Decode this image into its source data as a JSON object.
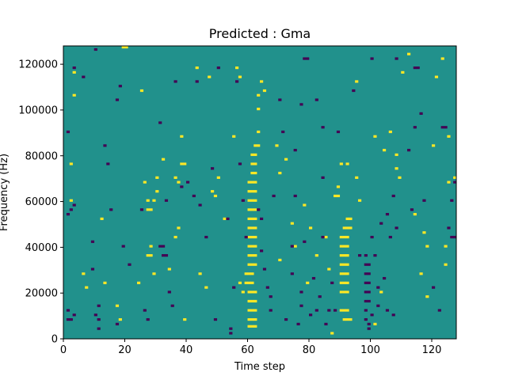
{
  "chart_data": {
    "type": "heatmap",
    "title": "Predicted : Gma",
    "xlabel": "Time step",
    "ylabel": "Frequency (Hz)",
    "xlim": [
      0,
      128
    ],
    "ylim": [
      0,
      128000
    ],
    "xticks": [
      0,
      20,
      40,
      60,
      80,
      100,
      120
    ],
    "yticks": [
      0,
      20000,
      40000,
      60000,
      80000,
      100000,
      120000
    ],
    "ytick_labels": [
      "0",
      "20000",
      "40000",
      "60000",
      "80000",
      "100000",
      "120000"
    ],
    "rows": 128,
    "cols": 128,
    "value_levels": [
      -1,
      0,
      1
    ],
    "colors": {
      "-1": "#440154",
      "0": "#21918c",
      "1": "#fde725"
    },
    "background_value": 0,
    "cells": [
      [
        60,
        5,
        1
      ],
      [
        61,
        5,
        1
      ],
      [
        62,
        5,
        1
      ],
      [
        60,
        8,
        1
      ],
      [
        61,
        8,
        1
      ],
      [
        62,
        8,
        1
      ],
      [
        60,
        12,
        1
      ],
      [
        61,
        12,
        1
      ],
      [
        62,
        12,
        1
      ],
      [
        60,
        16,
        1
      ],
      [
        61,
        16,
        1
      ],
      [
        62,
        16,
        1
      ],
      [
        60,
        20,
        1
      ],
      [
        61,
        20,
        1
      ],
      [
        62,
        20,
        1
      ],
      [
        59,
        24,
        1
      ],
      [
        60,
        24,
        1
      ],
      [
        61,
        24,
        1
      ],
      [
        59,
        28,
        1
      ],
      [
        60,
        28,
        1
      ],
      [
        61,
        28,
        1
      ],
      [
        60,
        32,
        1
      ],
      [
        61,
        32,
        1
      ],
      [
        62,
        32,
        1
      ],
      [
        60,
        36,
        1
      ],
      [
        61,
        36,
        1
      ],
      [
        62,
        36,
        1
      ],
      [
        60,
        40,
        1
      ],
      [
        61,
        40,
        1
      ],
      [
        62,
        40,
        1
      ],
      [
        60,
        44,
        1
      ],
      [
        61,
        44,
        1
      ],
      [
        62,
        44,
        1
      ],
      [
        60,
        48,
        1
      ],
      [
        61,
        48,
        1
      ],
      [
        62,
        48,
        1
      ],
      [
        60,
        52,
        1
      ],
      [
        61,
        52,
        1
      ],
      [
        62,
        52,
        1
      ],
      [
        60,
        56,
        1
      ],
      [
        61,
        56,
        1
      ],
      [
        62,
        56,
        1
      ],
      [
        60,
        60,
        1
      ],
      [
        61,
        60,
        1
      ],
      [
        62,
        60,
        1
      ],
      [
        60,
        64,
        1
      ],
      [
        61,
        64,
        1
      ],
      [
        62,
        64,
        1
      ],
      [
        60,
        68,
        1
      ],
      [
        61,
        68,
        1
      ],
      [
        62,
        68,
        1
      ],
      [
        61,
        72,
        1
      ],
      [
        62,
        72,
        1
      ],
      [
        61,
        76,
        1
      ],
      [
        62,
        76,
        1
      ],
      [
        61,
        80,
        1
      ],
      [
        62,
        80,
        1
      ],
      [
        62,
        84,
        1
      ],
      [
        63,
        84,
        1
      ],
      [
        63,
        90,
        1
      ],
      [
        63,
        100,
        1
      ],
      [
        63,
        106,
        1
      ],
      [
        91,
        8,
        1
      ],
      [
        92,
        8,
        1
      ],
      [
        93,
        8,
        1
      ],
      [
        90,
        12,
        1
      ],
      [
        91,
        12,
        1
      ],
      [
        92,
        12,
        1
      ],
      [
        90,
        20,
        1
      ],
      [
        91,
        20,
        1
      ],
      [
        92,
        20,
        1
      ],
      [
        90,
        24,
        1
      ],
      [
        91,
        24,
        1
      ],
      [
        92,
        24,
        1
      ],
      [
        90,
        28,
        1
      ],
      [
        91,
        28,
        1
      ],
      [
        92,
        28,
        1
      ],
      [
        90,
        32,
        1
      ],
      [
        91,
        32,
        1
      ],
      [
        92,
        32,
        1
      ],
      [
        90,
        36,
        1
      ],
      [
        91,
        36,
        1
      ],
      [
        92,
        36,
        1
      ],
      [
        90,
        40,
        1
      ],
      [
        91,
        40,
        1
      ],
      [
        92,
        40,
        1
      ],
      [
        90,
        44,
        1
      ],
      [
        91,
        44,
        1
      ],
      [
        92,
        44,
        1
      ],
      [
        91,
        48,
        1
      ],
      [
        92,
        48,
        1
      ],
      [
        93,
        48,
        1
      ],
      [
        92,
        52,
        1
      ],
      [
        93,
        52,
        1
      ],
      [
        88,
        62,
        1
      ],
      [
        89,
        62,
        1
      ],
      [
        89,
        66,
        1
      ],
      [
        90,
        76,
        1
      ],
      [
        92,
        76,
        1
      ],
      [
        28,
        36,
        1
      ],
      [
        28,
        40,
        1
      ],
      [
        27,
        36,
        1
      ],
      [
        27,
        56,
        1
      ],
      [
        28,
        56,
        1
      ],
      [
        27,
        60,
        1
      ],
      [
        30,
        70,
        1
      ],
      [
        29,
        60,
        1
      ],
      [
        30,
        64,
        1
      ],
      [
        38,
        76,
        1
      ],
      [
        37,
        68,
        1
      ],
      [
        36,
        70,
        1
      ],
      [
        20,
        127,
        1
      ],
      [
        19,
        127,
        1
      ],
      [
        43,
        118,
        1
      ],
      [
        47,
        114,
        1
      ],
      [
        56,
        118,
        1
      ],
      [
        57,
        114,
        1
      ],
      [
        65,
        108,
        1
      ],
      [
        64,
        112,
        1
      ],
      [
        70,
        72,
        1
      ],
      [
        69,
        84,
        1
      ],
      [
        72,
        78,
        1
      ],
      [
        70,
        34,
        1
      ],
      [
        75,
        40,
        1
      ],
      [
        74,
        50,
        1
      ],
      [
        78,
        58,
        1
      ],
      [
        80,
        48,
        1
      ],
      [
        79,
        24,
        1
      ],
      [
        82,
        36,
        1
      ],
      [
        85,
        44,
        1
      ],
      [
        86,
        30,
        1
      ],
      [
        87,
        2,
        1
      ],
      [
        96,
        60,
        1
      ],
      [
        95,
        70,
        1
      ],
      [
        101,
        6,
        1
      ],
      [
        103,
        20,
        1
      ],
      [
        108,
        80,
        1
      ],
      [
        109,
        70,
        1
      ],
      [
        106,
        90,
        1
      ],
      [
        110,
        116,
        1
      ],
      [
        112,
        124,
        1
      ],
      [
        117,
        46,
        1
      ],
      [
        118,
        40,
        1
      ],
      [
        118,
        18,
        1
      ],
      [
        120,
        84,
        1
      ],
      [
        124,
        40,
        1
      ],
      [
        124,
        32,
        1
      ],
      [
        125,
        88,
        1
      ],
      [
        127,
        70,
        1
      ],
      [
        125,
        68,
        1
      ],
      [
        2,
        76,
        1
      ],
      [
        2,
        60,
        1
      ],
      [
        3,
        106,
        1
      ],
      [
        3,
        116,
        1
      ],
      [
        6,
        28,
        1
      ],
      [
        7,
        22,
        1
      ],
      [
        12,
        52,
        1
      ],
      [
        13,
        24,
        1
      ],
      [
        17,
        14,
        1
      ],
      [
        18,
        8,
        1
      ],
      [
        24,
        24,
        1
      ],
      [
        25,
        108,
        1
      ],
      [
        26,
        68,
        1
      ],
      [
        29,
        28,
        1
      ],
      [
        32,
        78,
        1
      ],
      [
        34,
        30,
        1
      ],
      [
        37,
        48,
        1
      ],
      [
        36,
        44,
        1
      ],
      [
        38,
        88,
        1
      ],
      [
        39,
        76,
        1
      ],
      [
        39,
        8,
        1
      ],
      [
        44,
        28,
        1
      ],
      [
        46,
        22,
        1
      ],
      [
        48,
        64,
        1
      ],
      [
        49,
        62,
        1
      ],
      [
        50,
        70,
        1
      ],
      [
        52,
        52,
        1
      ],
      [
        55,
        88,
        1
      ],
      [
        57,
        24,
        1
      ],
      [
        58,
        20,
        1
      ],
      [
        95,
        112,
        1
      ],
      [
        101,
        88,
        1
      ],
      [
        104,
        82,
        1
      ],
      [
        108,
        74,
        1
      ],
      [
        114,
        54,
        1
      ],
      [
        116,
        28,
        1
      ],
      [
        121,
        114,
        1
      ],
      [
        123,
        122,
        1
      ],
      [
        1,
        12,
        -1
      ],
      [
        1,
        8,
        -1
      ],
      [
        2,
        8,
        -1
      ],
      [
        3,
        10,
        -1
      ],
      [
        1,
        54,
        -1
      ],
      [
        2,
        56,
        -1
      ],
      [
        3,
        58,
        -1
      ],
      [
        1,
        90,
        -1
      ],
      [
        3,
        118,
        -1
      ],
      [
        6,
        114,
        -1
      ],
      [
        9,
        42,
        -1
      ],
      [
        9,
        30,
        -1
      ],
      [
        10,
        10,
        -1
      ],
      [
        11,
        14,
        -1
      ],
      [
        11,
        8,
        -1
      ],
      [
        11,
        4,
        -1
      ],
      [
        13,
        84,
        -1
      ],
      [
        14,
        76,
        -1
      ],
      [
        15,
        56,
        -1
      ],
      [
        17,
        6,
        -1
      ],
      [
        18,
        110,
        -1
      ],
      [
        19,
        40,
        -1
      ],
      [
        21,
        32,
        -1
      ],
      [
        25,
        56,
        -1
      ],
      [
        26,
        12,
        -1
      ],
      [
        27,
        8,
        -1
      ],
      [
        31,
        40,
        -1
      ],
      [
        32,
        40,
        -1
      ],
      [
        32,
        36,
        -1
      ],
      [
        33,
        36,
        -1
      ],
      [
        31,
        94,
        -1
      ],
      [
        33,
        60,
        -1
      ],
      [
        34,
        20,
        -1
      ],
      [
        35,
        14,
        -1
      ],
      [
        36,
        112,
        -1
      ],
      [
        38,
        66,
        -1
      ],
      [
        40,
        68,
        -1
      ],
      [
        42,
        62,
        -1
      ],
      [
        43,
        112,
        -1
      ],
      [
        44,
        58,
        -1
      ],
      [
        46,
        44,
        -1
      ],
      [
        48,
        74,
        -1
      ],
      [
        49,
        8,
        -1
      ],
      [
        50,
        118,
        -1
      ],
      [
        53,
        52,
        -1
      ],
      [
        54,
        4,
        -1
      ],
      [
        54,
        2,
        -1
      ],
      [
        55,
        22,
        -1
      ],
      [
        57,
        76,
        -1
      ],
      [
        58,
        60,
        -1
      ],
      [
        59,
        44,
        -1
      ],
      [
        63,
        56,
        -1
      ],
      [
        64,
        38,
        -1
      ],
      [
        64,
        52,
        -1
      ],
      [
        65,
        30,
        -1
      ],
      [
        66,
        22,
        -1
      ],
      [
        67,
        18,
        -1
      ],
      [
        67,
        12,
        -1
      ],
      [
        68,
        62,
        -1
      ],
      [
        70,
        104,
        -1
      ],
      [
        71,
        90,
        -1
      ],
      [
        72,
        8,
        -1
      ],
      [
        74,
        28,
        -1
      ],
      [
        74,
        40,
        -1
      ],
      [
        75,
        82,
        -1
      ],
      [
        75,
        62,
        -1
      ],
      [
        76,
        6,
        -1
      ],
      [
        77,
        14,
        -1
      ],
      [
        77,
        20,
        -1
      ],
      [
        78,
        42,
        -1
      ],
      [
        78,
        122,
        -1
      ],
      [
        80,
        10,
        -1
      ],
      [
        81,
        26,
        -1
      ],
      [
        82,
        12,
        -1
      ],
      [
        83,
        18,
        -1
      ],
      [
        84,
        44,
        -1
      ],
      [
        84,
        70,
        -1
      ],
      [
        85,
        6,
        -1
      ],
      [
        86,
        12,
        -1
      ],
      [
        87,
        24,
        -1
      ],
      [
        88,
        12,
        -1
      ],
      [
        89,
        90,
        -1
      ],
      [
        94,
        108,
        -1
      ],
      [
        96,
        36,
        -1
      ],
      [
        98,
        36,
        -1
      ],
      [
        98,
        32,
        -1
      ],
      [
        98,
        28,
        -1
      ],
      [
        98,
        24,
        -1
      ],
      [
        98,
        20,
        -1
      ],
      [
        98,
        16,
        -1
      ],
      [
        98,
        12,
        -1
      ],
      [
        98,
        8,
        -1
      ],
      [
        99,
        6,
        -1
      ],
      [
        99,
        4,
        -1
      ],
      [
        99,
        32,
        -1
      ],
      [
        99,
        28,
        -1
      ],
      [
        99,
        24,
        -1
      ],
      [
        99,
        20,
        -1
      ],
      [
        99,
        16,
        -1
      ],
      [
        100,
        44,
        -1
      ],
      [
        100,
        10,
        -1
      ],
      [
        101,
        36,
        -1
      ],
      [
        102,
        14,
        -1
      ],
      [
        102,
        22,
        -1
      ],
      [
        103,
        50,
        -1
      ],
      [
        104,
        26,
        -1
      ],
      [
        105,
        12,
        -1
      ],
      [
        105,
        54,
        -1
      ],
      [
        106,
        44,
        -1
      ],
      [
        107,
        10,
        -1
      ],
      [
        107,
        62,
        -1
      ],
      [
        108,
        48,
        -1
      ],
      [
        112,
        82,
        -1
      ],
      [
        113,
        56,
        -1
      ],
      [
        114,
        92,
        -1
      ],
      [
        115,
        118,
        -1
      ],
      [
        116,
        98,
        -1
      ],
      [
        117,
        60,
        -1
      ],
      [
        120,
        22,
        -1
      ],
      [
        122,
        12,
        -1
      ],
      [
        123,
        92,
        -1
      ],
      [
        124,
        92,
        -1
      ],
      [
        125,
        48,
        -1
      ],
      [
        126,
        44,
        -1
      ],
      [
        127,
        44,
        -1
      ],
      [
        127,
        68,
        -1
      ],
      [
        126,
        60,
        -1
      ],
      [
        10,
        126,
        -1
      ],
      [
        17,
        104,
        -1
      ],
      [
        56,
        112,
        -1
      ],
      [
        77,
        102,
        -1
      ],
      [
        79,
        122,
        -1
      ],
      [
        82,
        104,
        -1
      ],
      [
        84,
        92,
        -1
      ],
      [
        100,
        122,
        -1
      ],
      [
        108,
        122,
        -1
      ],
      [
        114,
        118,
        -1
      ]
    ]
  }
}
